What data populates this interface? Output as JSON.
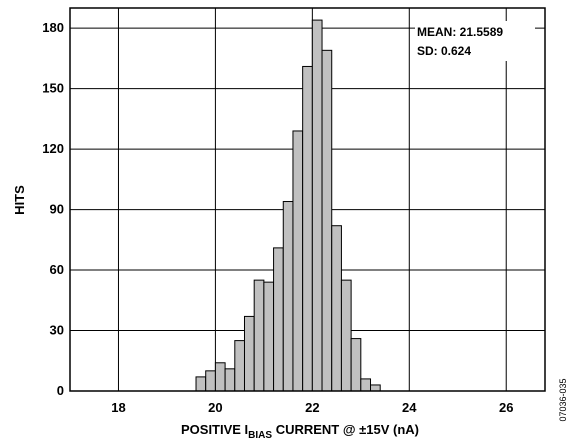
{
  "chart_data": {
    "type": "bar",
    "title": "",
    "xlabel": "POSITIVE I",
    "xlabel_subscript": "BIAS",
    "xlabel_suffix": " CURRENT @ ±15V  (nA)",
    "ylabel": "HITS",
    "xlim": [
      17,
      26.8
    ],
    "ylim": [
      0,
      190
    ],
    "x_ticks": [
      18,
      20,
      22,
      24,
      26
    ],
    "y_ticks": [
      0,
      30,
      60,
      90,
      120,
      150,
      180
    ],
    "grid": true,
    "bin_width": 0.2,
    "bar_color": "#c0c0c0",
    "bar_stroke": "#000000",
    "stats": {
      "mean_label": "MEAN: 21.5589",
      "sd_label": "SD: 0.624",
      "position": "top-right"
    },
    "figure_id": "07036-035",
    "bins": [
      {
        "x": 19.6,
        "value": 7
      },
      {
        "x": 19.8,
        "value": 10
      },
      {
        "x": 20.0,
        "value": 14
      },
      {
        "x": 20.2,
        "value": 11
      },
      {
        "x": 20.4,
        "value": 25
      },
      {
        "x": 20.6,
        "value": 37
      },
      {
        "x": 20.8,
        "value": 55
      },
      {
        "x": 21.0,
        "value": 54
      },
      {
        "x": 21.2,
        "value": 71
      },
      {
        "x": 21.4,
        "value": 94
      },
      {
        "x": 21.6,
        "value": 129
      },
      {
        "x": 21.8,
        "value": 161
      },
      {
        "x": 22.0,
        "value": 184
      },
      {
        "x": 22.2,
        "value": 169
      },
      {
        "x": 22.4,
        "value": 82
      },
      {
        "x": 22.6,
        "value": 55
      },
      {
        "x": 22.8,
        "value": 26
      },
      {
        "x": 23.0,
        "value": 6
      },
      {
        "x": 23.2,
        "value": 3
      }
    ]
  }
}
